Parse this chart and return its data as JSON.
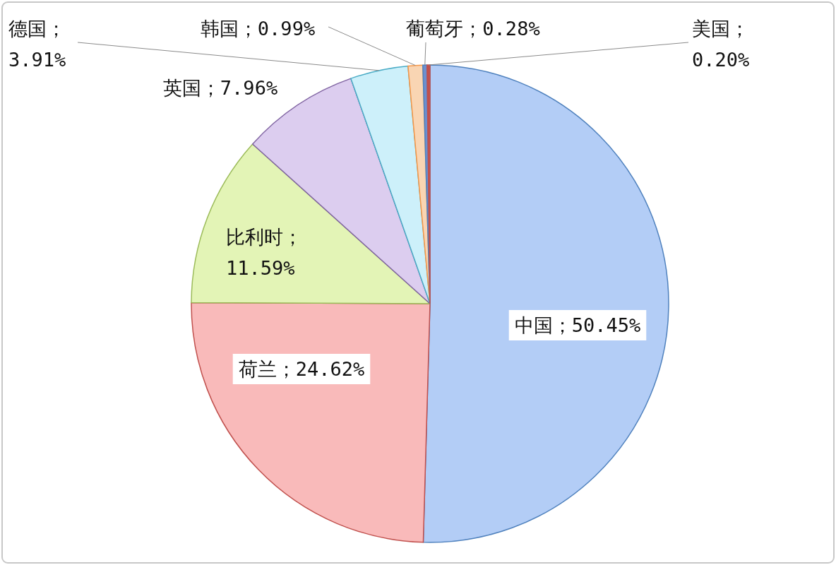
{
  "chart_data": {
    "type": "pie",
    "categories": [
      "中国",
      "荷兰",
      "比利时",
      "英国",
      "德国",
      "韩国",
      "葡萄牙",
      "美国"
    ],
    "values": [
      50.45,
      24.62,
      11.59,
      7.96,
      3.91,
      0.99,
      0.28,
      0.2
    ],
    "colors": [
      "#b3cdf6",
      "#f9baba",
      "#e3f4b6",
      "#dccdef",
      "#cdf0fa",
      "#f9d5b3",
      "#6d8fcf",
      "#c0504d"
    ],
    "value_labels": [
      "；50.45%",
      "；24.62%",
      "；11.59%",
      "；7.96%",
      "；3.91%",
      "；0.99%",
      "；0.28%",
      "；0.20%"
    ]
  }
}
